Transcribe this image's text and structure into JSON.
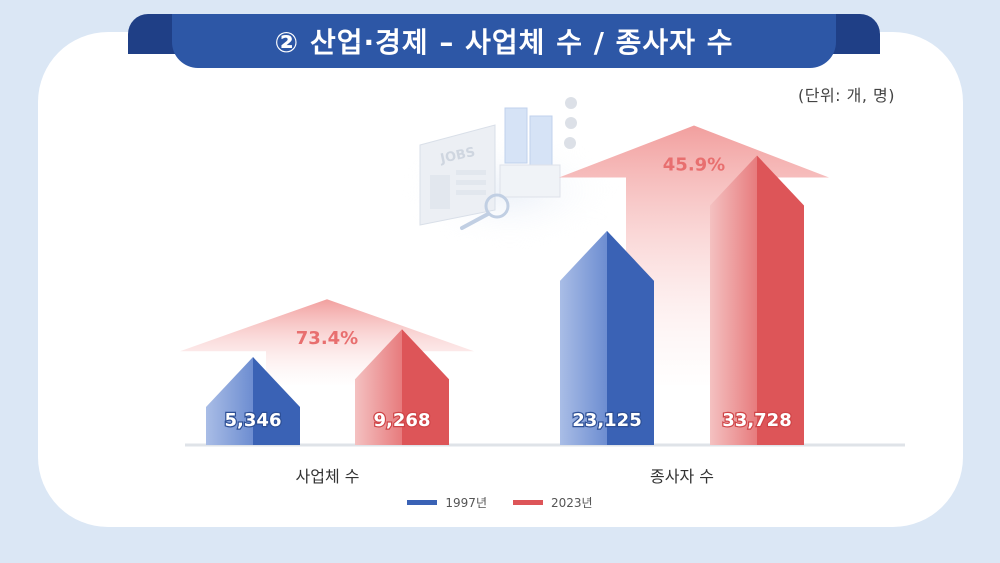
{
  "header": {
    "title": "② 산업·경제 – 사업체 수 / 종사자 수"
  },
  "unit_label": "(단위: 개, 명)",
  "colors": {
    "series_1997": "#3a62b5",
    "series_2023": "#dd5558",
    "growth_arrow": "#f3a7a6",
    "growth_text": "#e86f6f"
  },
  "illustration": {
    "sign_text": "JOBS"
  },
  "chart_data": {
    "type": "bar",
    "categories": [
      "사업체 수",
      "종사자 수"
    ],
    "series": [
      {
        "name": "1997년",
        "values": [
          5346,
          23125
        ],
        "labels": [
          "5,346",
          "23,125"
        ]
      },
      {
        "name": "2023년",
        "values": [
          9268,
          33728
        ],
        "labels": [
          "9,268",
          "33,728"
        ]
      }
    ],
    "growth": [
      "73.4%",
      "45.9%"
    ],
    "legend_position": "bottom"
  }
}
